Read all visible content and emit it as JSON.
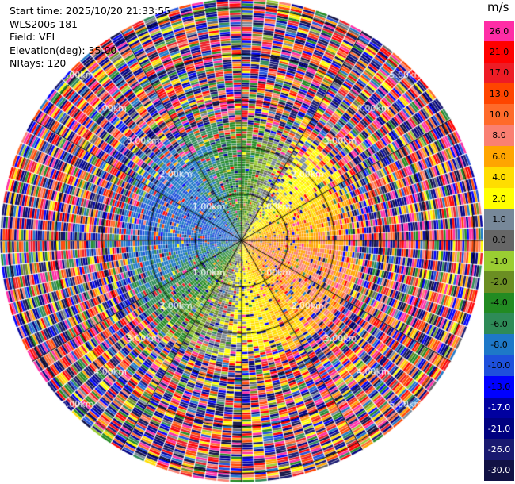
{
  "info": {
    "start_time": "Start time: 2025/10/20 21:33:55",
    "instrument": "WLS200s-181",
    "field": "Field: VEL",
    "elevation": "Elevation(deg): 35.00",
    "nrays": "NRays: 120"
  },
  "colorbar": {
    "unit": "m/s",
    "levels": [
      {
        "label": "26.0",
        "color": "#ff2da6",
        "text_color": "#000000"
      },
      {
        "label": "21.0",
        "color": "#ff0000",
        "text_color": "#000000"
      },
      {
        "label": "17.0",
        "color": "#ee1c25",
        "text_color": "#000000"
      },
      {
        "label": "13.0",
        "color": "#ff4500",
        "text_color": "#000000"
      },
      {
        "label": "10.0",
        "color": "#ff6a2a",
        "text_color": "#000000"
      },
      {
        "label": "8.0",
        "color": "#fa8072",
        "text_color": "#000000"
      },
      {
        "label": "6.0",
        "color": "#ffa500",
        "text_color": "#000000"
      },
      {
        "label": "4.0",
        "color": "#ffdd00",
        "text_color": "#000000"
      },
      {
        "label": "2.0",
        "color": "#ffff00",
        "text_color": "#000000"
      },
      {
        "label": "1.0",
        "color": "#778899",
        "text_color": "#000000"
      },
      {
        "label": "0.0",
        "color": "#666666",
        "text_color": "#000000"
      },
      {
        "label": "-1.0",
        "color": "#9acd32",
        "text_color": "#000000"
      },
      {
        "label": "-2.0",
        "color": "#6b8e23",
        "text_color": "#000000"
      },
      {
        "label": "-4.0",
        "color": "#228b22",
        "text_color": "#000000"
      },
      {
        "label": "-6.0",
        "color": "#2e8b57",
        "text_color": "#000000"
      },
      {
        "label": "-8.0",
        "color": "#1e78c8",
        "text_color": "#000000"
      },
      {
        "label": "-10.0",
        "color": "#1e50dc",
        "text_color": "#000000"
      },
      {
        "label": "-13.0",
        "color": "#0000ff",
        "text_color": "#000000"
      },
      {
        "label": "-17.0",
        "color": "#0000a0",
        "text_color": "#ffffff"
      },
      {
        "label": "-21.0",
        "color": "#000080",
        "text_color": "#ffffff"
      },
      {
        "label": "-26.0",
        "color": "#191970",
        "text_color": "#ffffff"
      },
      {
        "label": "-30.0",
        "color": "#111144",
        "text_color": "#ffffff"
      }
    ]
  },
  "chart_data": {
    "type": "heatmap",
    "projection": "polar-ppi",
    "field": "VEL",
    "units": "m/s",
    "elevation_deg": 35.0,
    "n_rays": 120,
    "range_rings_km": [
      1.0,
      2.0,
      3.0,
      4.0,
      5.0
    ],
    "ring_labels": [
      "1.00km",
      "2.00km",
      "3.00km",
      "4.00km",
      "5.00km"
    ],
    "max_range_km": 5.2,
    "spokes_deg": [
      0,
      30,
      60,
      90,
      120,
      150,
      180,
      210,
      240,
      270,
      300,
      330
    ],
    "pattern": {
      "positive_toward_deg": 110,
      "peak_velocity": 8.0,
      "inner_clean_range_km": 2.2,
      "outer_noise_start_km": 2.6
    },
    "colorbar_bounds": [
      -30,
      -26,
      -21,
      -17,
      -13,
      -10,
      -8,
      -6,
      -4,
      -2,
      -1,
      0,
      1,
      2,
      4,
      6,
      8,
      10,
      13,
      17,
      21,
      26,
      30
    ]
  }
}
